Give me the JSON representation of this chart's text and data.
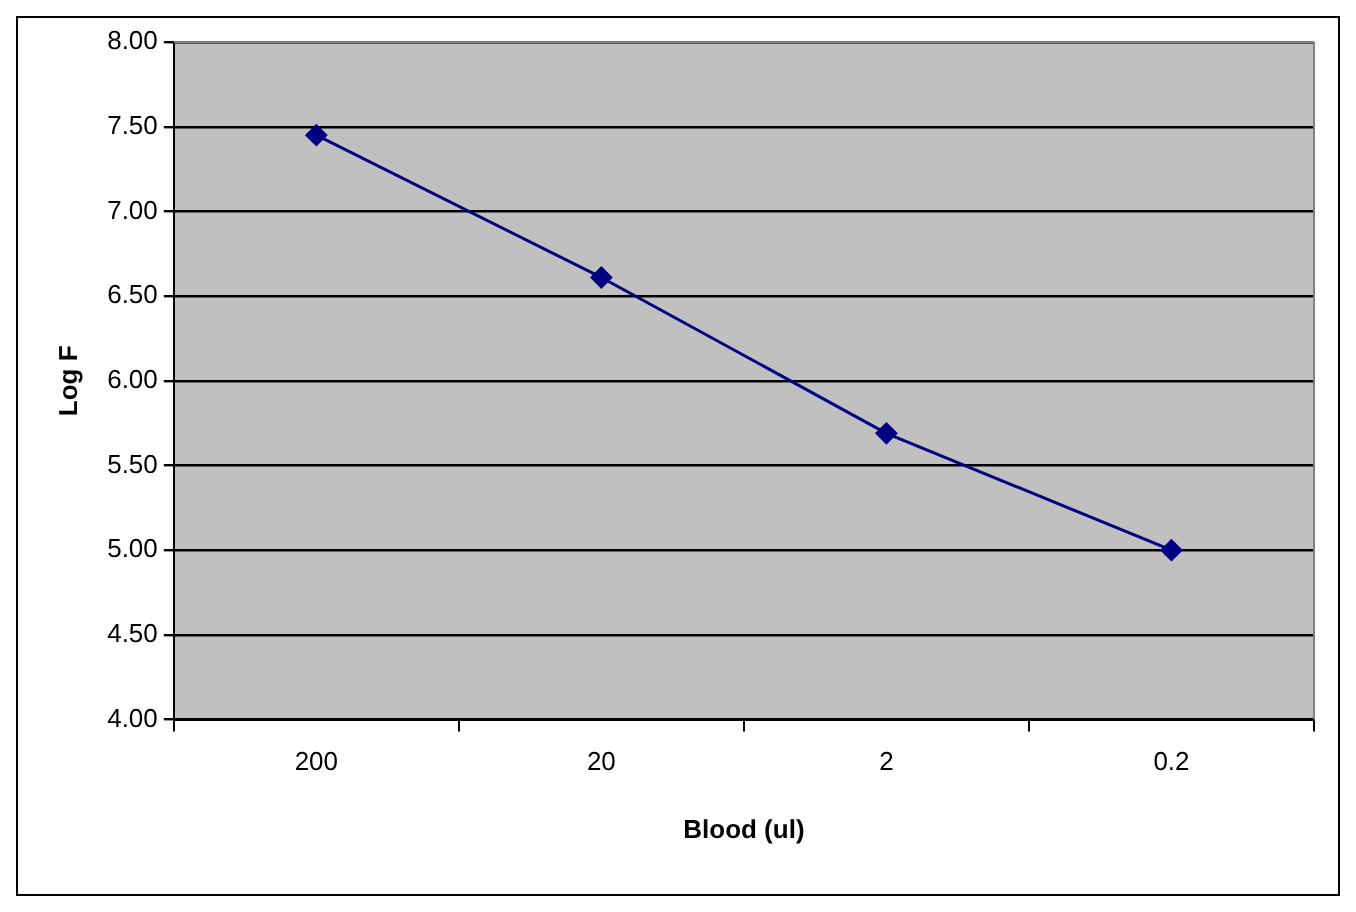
{
  "chart_data": {
    "type": "line",
    "xlabel": "Blood (ul)",
    "ylabel": "Log F",
    "categories": [
      "200",
      "20",
      "2",
      "0.2"
    ],
    "series": [
      {
        "color": "#000080",
        "values": [
          7.45,
          6.61,
          5.69,
          5.0
        ]
      }
    ],
    "ylim": [
      4,
      8
    ],
    "yticks": [
      {
        "value": 4,
        "label": "4.00"
      },
      {
        "value": 4.5,
        "label": "4.50"
      },
      {
        "value": 5,
        "label": "5.00"
      },
      {
        "value": 5.5,
        "label": "5.50"
      },
      {
        "value": 6,
        "label": "6.00"
      },
      {
        "value": 6.5,
        "label": "6.50"
      },
      {
        "value": 7,
        "label": "7.00"
      },
      {
        "value": 7.5,
        "label": "7.50"
      },
      {
        "value": 8,
        "label": "8.00"
      }
    ],
    "grid": "y",
    "legend": false,
    "marker": "diamond",
    "line_style": "solid"
  }
}
